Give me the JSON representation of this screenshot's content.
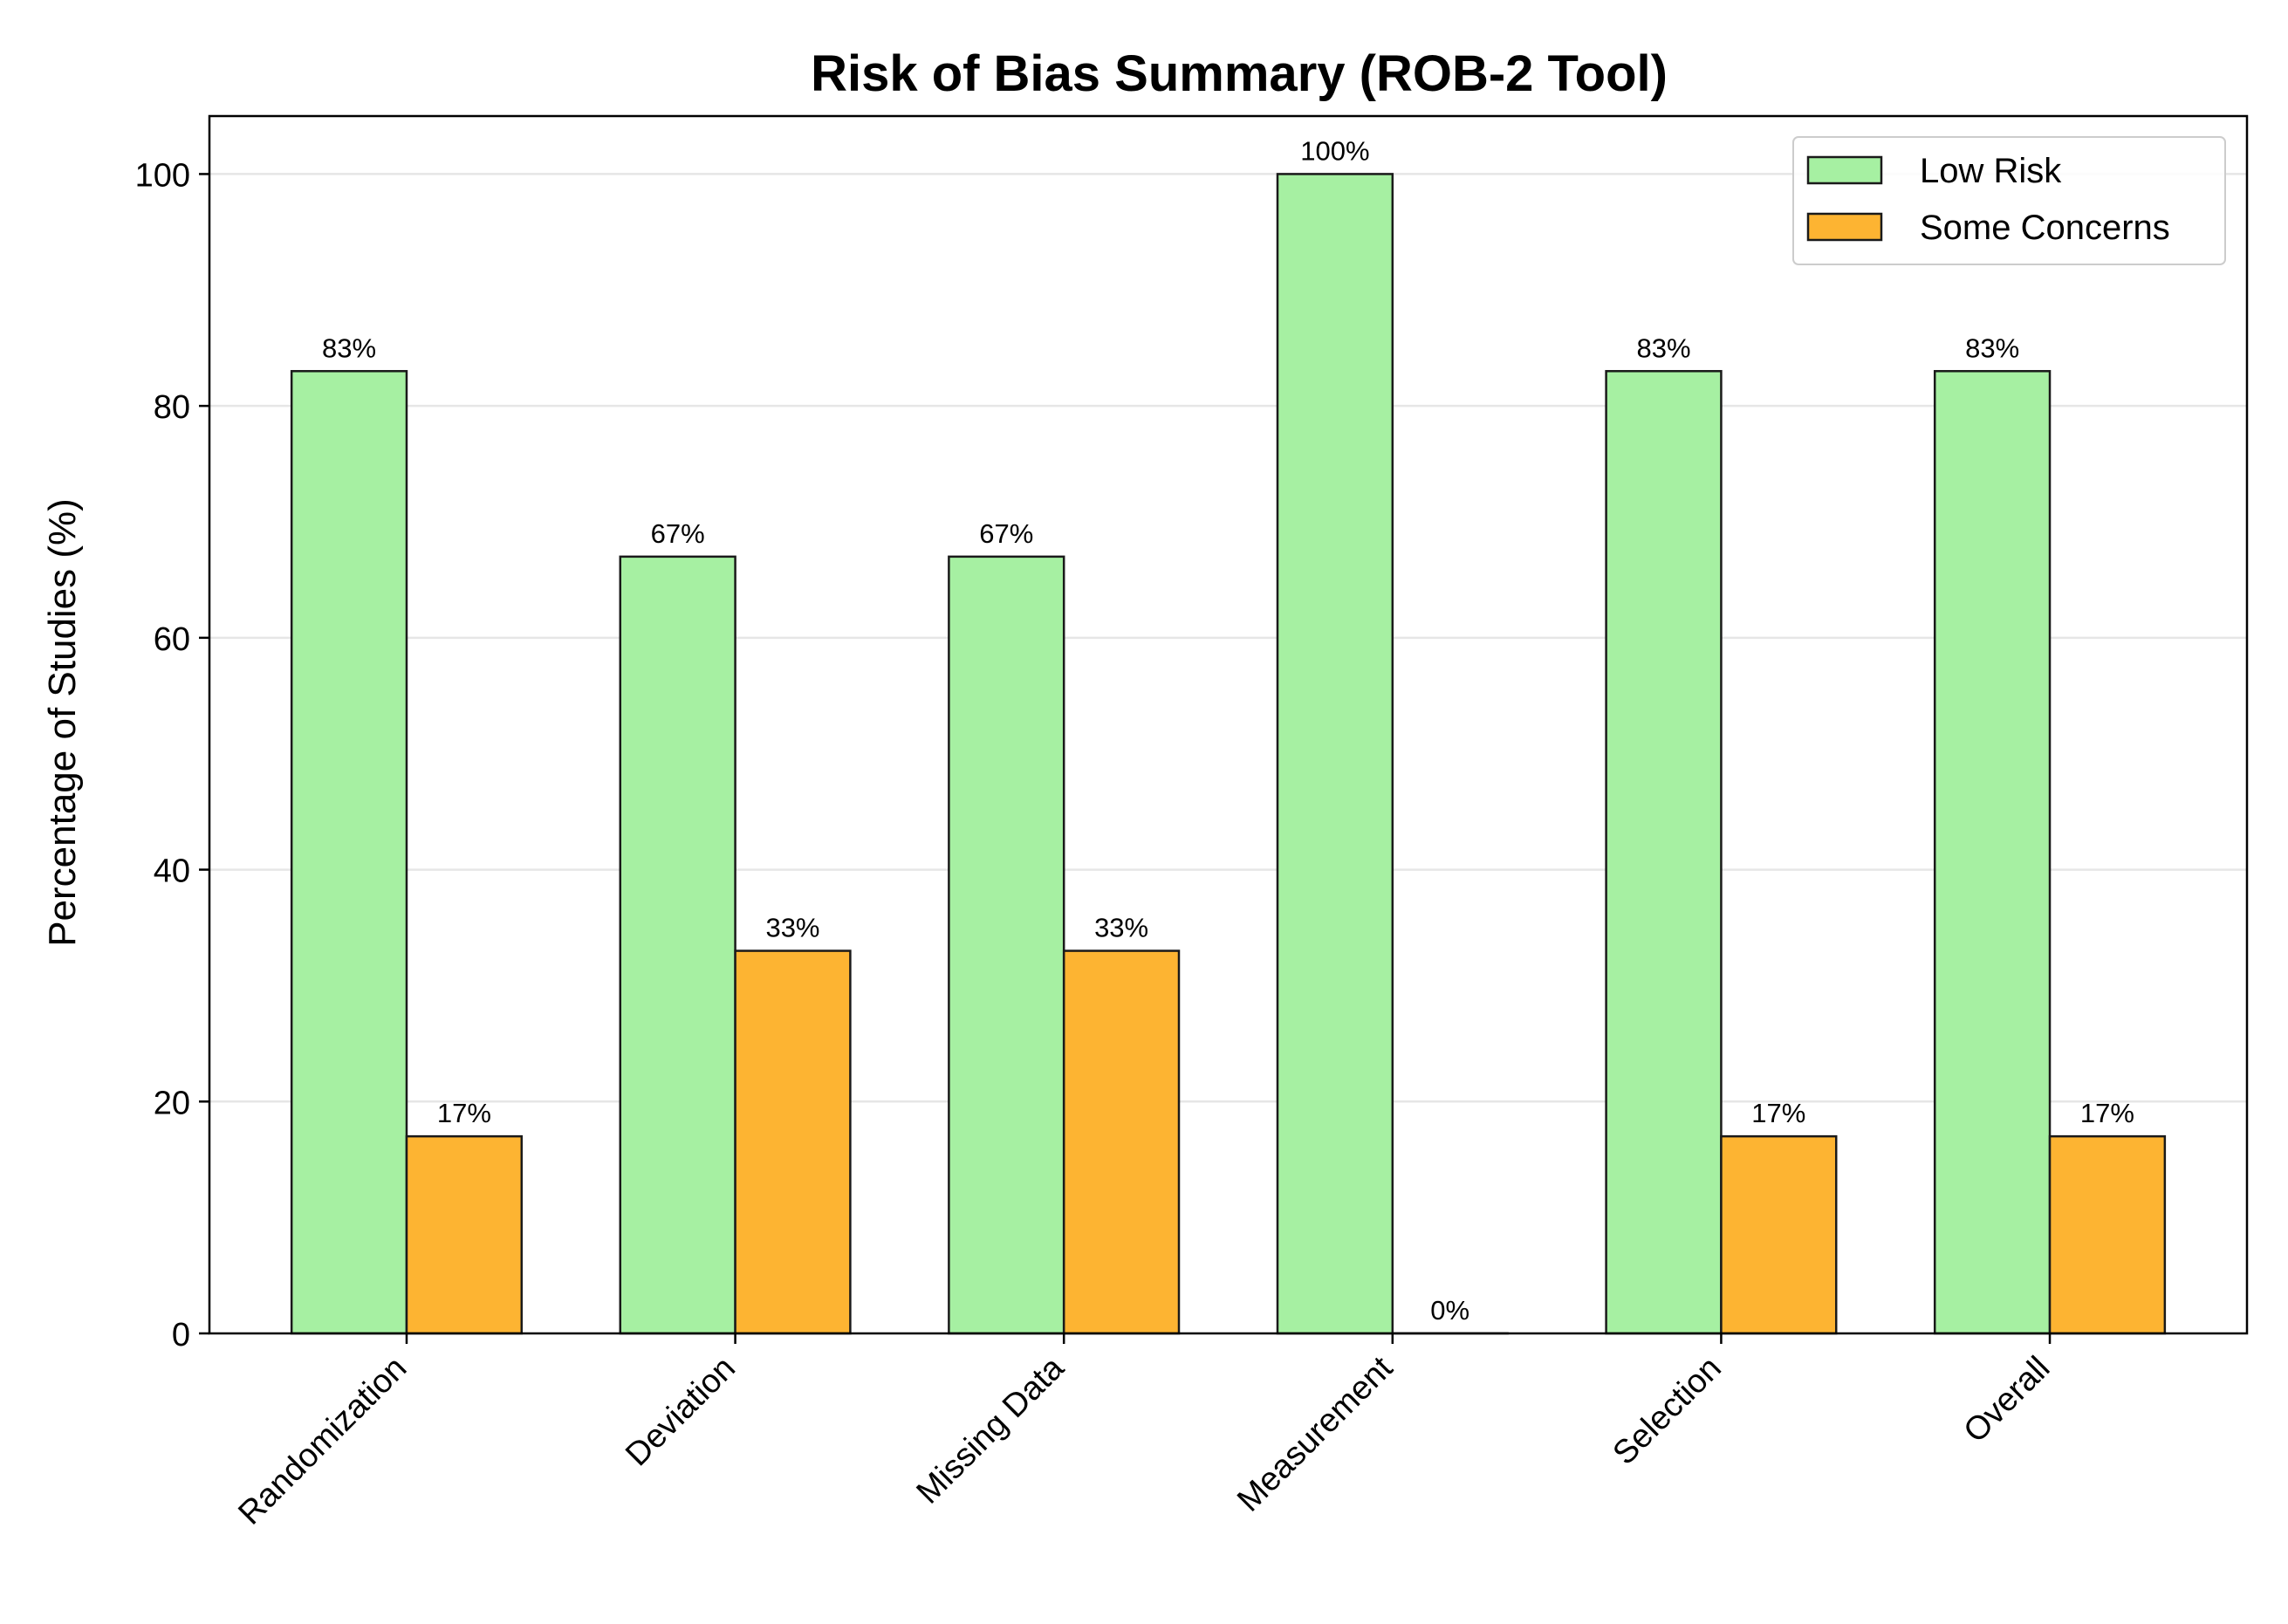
{
  "chart_data": {
    "type": "bar",
    "title": "Risk of Bias Summary (ROB-2 Tool)",
    "xlabel": "",
    "ylabel": "Percentage of Studies (%)",
    "categories": [
      "Randomization",
      "Deviation",
      "Missing Data",
      "Measurement",
      "Selection",
      "Overall"
    ],
    "series": [
      {
        "name": "Low Risk",
        "color": "#a6f0a2",
        "values": [
          83,
          67,
          67,
          100,
          83,
          83
        ],
        "labels": [
          "83%",
          "67%",
          "67%",
          "100%",
          "83%",
          "83%"
        ]
      },
      {
        "name": "Some Concerns",
        "color": "#fdb432",
        "values": [
          17,
          33,
          33,
          0,
          17,
          17
        ],
        "labels": [
          "17%",
          "33%",
          "33%",
          "0%",
          "17%",
          "17%"
        ]
      }
    ],
    "ylim": [
      0,
      105
    ],
    "yticks": [
      0,
      20,
      40,
      60,
      80,
      100
    ],
    "grid": "y",
    "legend_position": "top-right"
  }
}
